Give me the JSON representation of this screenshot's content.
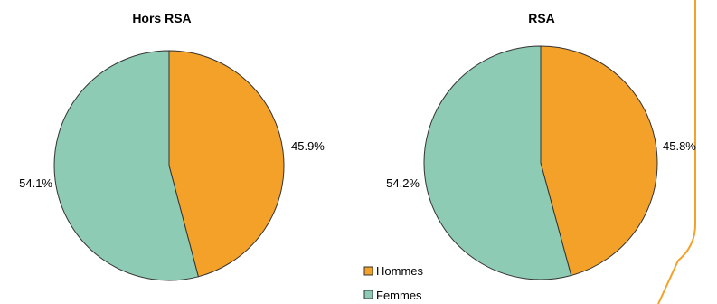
{
  "chart_data": [
    {
      "type": "pie",
      "title": "Hors RSA",
      "slices": [
        {
          "label": "Hommes",
          "value": 45.9,
          "display": "45.9%",
          "color": "#F4A12A"
        },
        {
          "label": "Femmes",
          "value": 54.1,
          "display": "54.1%",
          "color": "#8ECBB4"
        }
      ]
    },
    {
      "type": "pie",
      "title": "RSA",
      "slices": [
        {
          "label": "Hommes",
          "value": 45.8,
          "display": "45.8%",
          "color": "#F4A12A"
        },
        {
          "label": "Femmes",
          "value": 54.2,
          "display": "54.2%",
          "color": "#8ECBB4"
        }
      ]
    }
  ],
  "legend": {
    "placement": "bottom-center",
    "items": [
      {
        "label": "Hommes",
        "color": "#F4A12A"
      },
      {
        "label": "Femmes",
        "color": "#8ECBB4"
      }
    ]
  },
  "colors": {
    "border_accent": "#F4A12A",
    "slice_outline": "#333333"
  }
}
